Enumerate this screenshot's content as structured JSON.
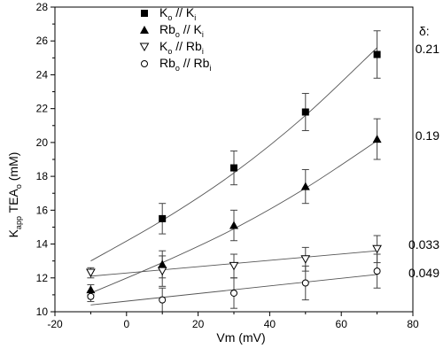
{
  "chart_data": {
    "type": "scatter",
    "xlabel": "Vm (mV)",
    "ylabel_parts": {
      "k": "K",
      "k_sub": "app",
      "main": " TEA",
      "main_sub": "o",
      "unit": " (mM)"
    },
    "xlim": [
      -20,
      80
    ],
    "ylim": [
      10,
      28
    ],
    "xticks": [
      "-20",
      "0",
      "20",
      "40",
      "60",
      "80"
    ],
    "yticks": [
      "10",
      "12",
      "14",
      "16",
      "18",
      "20",
      "22",
      "24",
      "26",
      "28"
    ],
    "delta_header": "δ:",
    "series": [
      {
        "name_parts": {
          "a": "K",
          "a_sub": "o",
          "mid": " // ",
          "b": "K",
          "b_sub": "i"
        },
        "marker": "filled-square",
        "delta": "0.21",
        "x": [
          10,
          30,
          50,
          70
        ],
        "y": [
          15.5,
          18.5,
          21.8,
          25.2
        ],
        "err": [
          0.9,
          1.0,
          1.1,
          1.4
        ],
        "fit": [
          [
            -10,
            13.0
          ],
          [
            10,
            15.4
          ],
          [
            30,
            18.2
          ],
          [
            50,
            21.6
          ],
          [
            70,
            25.6
          ]
        ]
      },
      {
        "name_parts": {
          "a": "Rb",
          "a_sub": "o",
          "mid": " // ",
          "b": "K",
          "b_sub": "i"
        },
        "marker": "filled-triangle",
        "delta": "0.19",
        "x": [
          -10,
          10,
          30,
          50,
          70
        ],
        "y": [
          11.3,
          12.8,
          15.1,
          17.4,
          20.2
        ],
        "err": [
          0.3,
          0.8,
          0.9,
          1.0,
          1.2
        ],
        "fit": [
          [
            -10,
            11.1
          ],
          [
            10,
            12.9
          ],
          [
            30,
            14.9
          ],
          [
            50,
            17.3
          ],
          [
            70,
            20.1
          ]
        ]
      },
      {
        "name_parts": {
          "a": "K",
          "a_sub": "o",
          "mid": " // ",
          "b": "Rb",
          "b_sub": "i"
        },
        "marker": "open-triangle-down",
        "delta": "0.033",
        "x": [
          -10,
          10,
          30,
          50,
          70
        ],
        "y": [
          12.3,
          12.4,
          12.7,
          13.1,
          13.7
        ],
        "err": [
          0.3,
          0.9,
          0.7,
          0.7,
          0.8
        ],
        "fit": [
          [
            -10,
            12.1
          ],
          [
            70,
            13.6
          ]
        ]
      },
      {
        "name_parts": {
          "a": "Rb",
          "a_sub": "o",
          "mid": " // ",
          "b": "Rb",
          "b_sub": "i"
        },
        "marker": "open-circle",
        "delta": "0.049",
        "x": [
          -10,
          10,
          30,
          50,
          70
        ],
        "y": [
          10.9,
          10.7,
          11.1,
          11.7,
          12.4
        ],
        "err": [
          0.3,
          0.7,
          0.9,
          1.0,
          1.0
        ],
        "fit": [
          [
            -10,
            10.4
          ],
          [
            70,
            12.2
          ]
        ]
      }
    ]
  }
}
